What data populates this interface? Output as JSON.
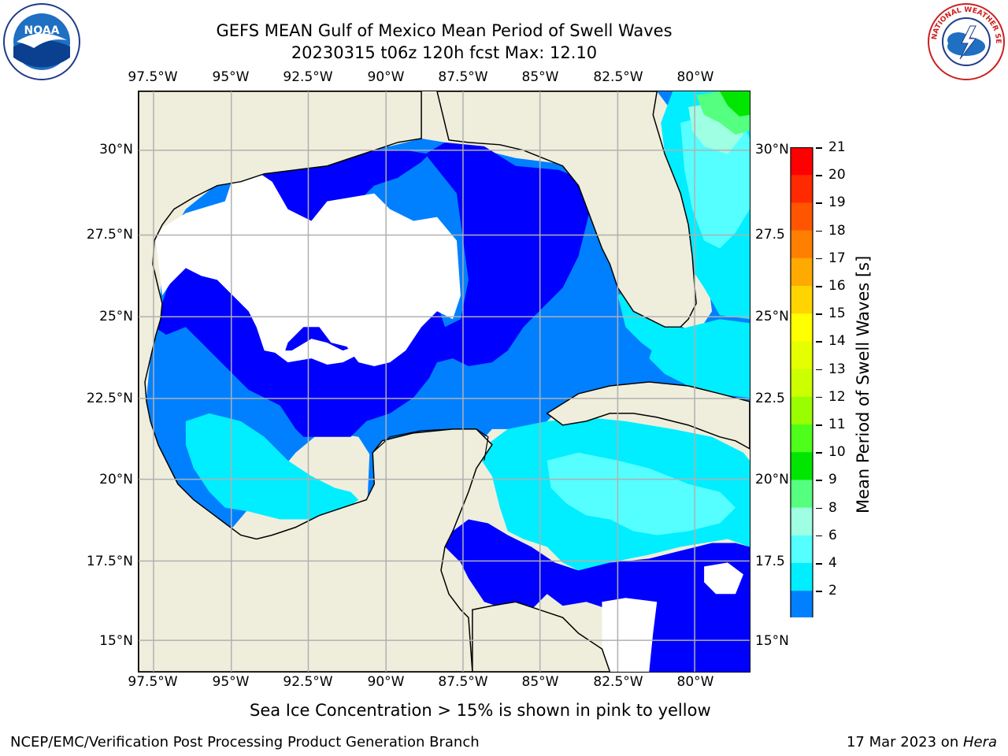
{
  "title": {
    "line1": "GEFS MEAN Gulf of Mexico Mean Period of Swell Waves",
    "line2": "20230315 t06z 120h fcst   Max: 12.10"
  },
  "logos": {
    "left": {
      "icon": "noaa-logo-icon",
      "text": "NOAA"
    },
    "right": {
      "icon": "nws-logo-icon",
      "text": "NATIONAL WEATHER SERVICE"
    }
  },
  "map": {
    "type": "filled-contour-map",
    "lon_range": [
      -98,
      -78.2
    ],
    "lat_range": [
      14,
      31.5
    ],
    "lon_ticks": [
      "97.5°W",
      "95°W",
      "92.5°W",
      "90°W",
      "87.5°W",
      "85°W",
      "82.5°W",
      "80°W"
    ],
    "lat_ticks_left": [
      "30°N",
      "27.5°N",
      "25°N",
      "22.5°N",
      "20°N",
      "17.5°N",
      "15°N"
    ],
    "lat_ticks_right": [
      "30°N",
      "27.5",
      "25°N",
      "22.5",
      "20°N",
      "17.5",
      "15°N"
    ],
    "grid": true,
    "land_color": "#efeedc",
    "no_data_color": "#ffffff"
  },
  "colorbar": {
    "label": "Mean Period of Swell Waves [s]",
    "ticks": [
      "21",
      "20",
      "19",
      "18",
      "17",
      "16",
      "15",
      "14",
      "13",
      "12",
      "11",
      "10",
      "9",
      "8",
      "6",
      "4",
      "2"
    ],
    "colors": [
      "#ff0000",
      "#ff2a00",
      "#ff5500",
      "#ff7f00",
      "#ffaa00",
      "#ffd400",
      "#ffff00",
      "#e6ff00",
      "#ccff00",
      "#99ff00",
      "#4dff1a",
      "#00e600",
      "#55ff7f",
      "#9effe3",
      "#55ffff",
      "#00eeff",
      "#0080ff",
      "#0000ff"
    ],
    "extend": "min"
  },
  "chart_data": {
    "type": "heatmap",
    "title": "GEFS MEAN Gulf of Mexico Mean Period of Swell Waves",
    "subtitle": "20230315 t06z 120h fcst   Max: 12.10",
    "variable_label": "Mean Period of Swell Waves [s]",
    "max_value": 12.1,
    "levels": [
      2,
      4,
      6,
      8,
      9,
      10,
      11,
      12,
      13,
      14,
      15,
      16,
      17,
      18,
      19,
      20,
      21
    ],
    "xlabel": "",
    "ylabel": ""
  },
  "note": "Sea Ice Concentration > 15% is shown in pink to yellow",
  "footer": {
    "left": "NCEP/EMC/Verification Post Processing Product Generation Branch",
    "date": "17 Mar 2023 on ",
    "machine": "Hera"
  }
}
